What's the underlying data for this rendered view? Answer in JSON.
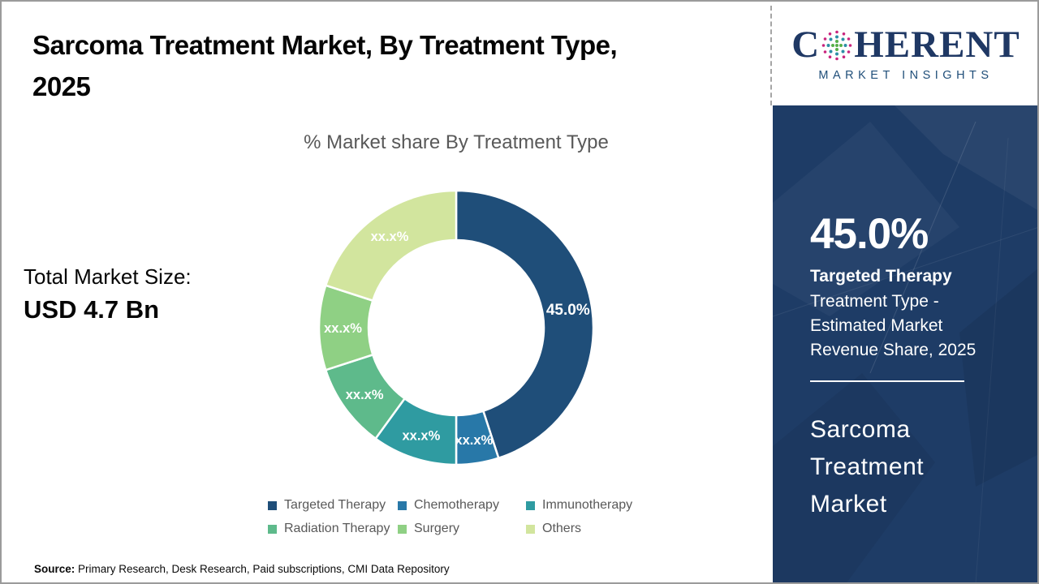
{
  "header": {
    "title_line1": "Sarcoma Treatment Market, By Treatment Type,",
    "title_line2": "2025"
  },
  "logo": {
    "brand_prefix": "C",
    "brand_suffix": "HERENT",
    "tagline": "MARKET INSIGHTS"
  },
  "summary": {
    "total_label": "Total Market Size:",
    "total_value": "USD 4.7 Bn"
  },
  "chart_data": {
    "type": "pie",
    "subtype": "donut",
    "title": "% Market share By Treatment Type",
    "categories": [
      "Targeted Therapy",
      "Chemotherapy",
      "Immunotherapy",
      "Radiation Therapy",
      "Surgery",
      "Others"
    ],
    "values": [
      45.0,
      5.0,
      10.0,
      10.0,
      10.0,
      20.0
    ],
    "value_labels": [
      "45.0%",
      "xx.x%",
      "xx.x%",
      "xx.x%",
      "xx.x%",
      "xx.x%"
    ],
    "colors": [
      "#1F4E79",
      "#2878A8",
      "#2F9BA1",
      "#5EBA8B",
      "#8FD084",
      "#D2E59E"
    ],
    "hole_ratio": 0.64,
    "start_angle": 0,
    "direction": "clockwise",
    "legend_position": "bottom",
    "label_color": "#ffffff"
  },
  "side_panel": {
    "stat_value": "45.0%",
    "stat_name": "Targeted Therapy",
    "stat_description": "Treatment Type - Estimated Market Revenue Share, 2025",
    "panel_title": "Sarcoma Treatment Market"
  },
  "footer": {
    "source_label": "Source:",
    "source_text": " Primary Research, Desk Research, Paid subscriptions, CMI Data Repository"
  },
  "colors": {
    "panel_bg": "#1E3C66",
    "logo_navy": "#1F3864",
    "text_gray": "#595959"
  }
}
